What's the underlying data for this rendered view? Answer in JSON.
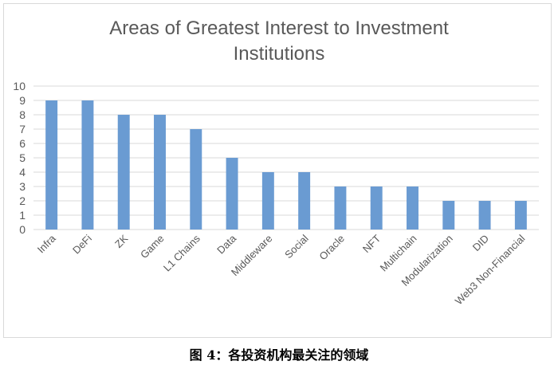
{
  "chart_data": {
    "type": "bar",
    "title": "Areas of Greatest Interest to Investment Institutions",
    "title_lines": [
      "Areas of Greatest Interest to Investment",
      "Institutions"
    ],
    "categories": [
      "Infra",
      "DeFi",
      "ZK",
      "Game",
      "L1 Chains",
      "Data",
      "Middleware",
      "Social",
      "Oracle",
      "NFT",
      "Multichain",
      "Modularization",
      "DID",
      "Web3 Non-Financial"
    ],
    "values": [
      9,
      9,
      8,
      8,
      7,
      5,
      4,
      4,
      3,
      3,
      3,
      2,
      2,
      2
    ],
    "ylim": [
      0,
      10
    ],
    "yticks": [
      0,
      1,
      2,
      3,
      4,
      5,
      6,
      7,
      8,
      9,
      10
    ],
    "grid": true,
    "legend": "none",
    "bar_color": "#6a9bd2",
    "grid_color": "#d9d9d9"
  },
  "caption": "图 4：各投资机构最关注的领域"
}
